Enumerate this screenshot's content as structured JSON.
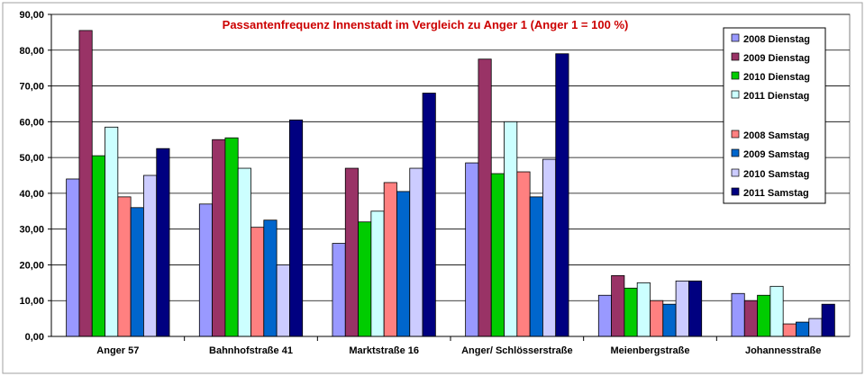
{
  "chart_data": {
    "type": "bar",
    "title": "Passantenfrequenz Innenstadt im Vergleich zu Anger 1 (Anger 1 = 100 %)",
    "title_color": "#cc0000",
    "xlabel": "",
    "ylabel": "",
    "ylim": [
      0,
      90
    ],
    "ytick_step": 10,
    "ytick_labels": [
      "0,00",
      "10,00",
      "20,00",
      "30,00",
      "40,00",
      "50,00",
      "60,00",
      "70,00",
      "80,00",
      "90,00"
    ],
    "grid": true,
    "legend_position": "top-right",
    "categories": [
      "Anger 57",
      "Bahnhofstraße 41",
      "Marktstraße 16",
      "Anger/ Schlösserstraße",
      "Meienbergstraße",
      "Johannesstraße"
    ],
    "series": [
      {
        "name": "2008 Dienstag",
        "color": "#9999ff",
        "values": [
          44,
          37,
          26,
          48.5,
          11.5,
          12
        ]
      },
      {
        "name": "2009 Dienstag",
        "color": "#993366",
        "values": [
          85.5,
          55,
          47,
          77.5,
          17,
          10
        ]
      },
      {
        "name": "2010 Dienstag",
        "color": "#00cc00",
        "values": [
          50.5,
          55.5,
          32,
          45.5,
          13.5,
          11.5
        ]
      },
      {
        "name": "2011 Dienstag",
        "color": "#ccffff",
        "values": [
          58.5,
          47,
          35,
          60,
          15,
          14
        ]
      },
      {
        "name": "2008 Samstag",
        "color": "#ff8080",
        "values": [
          39,
          30.5,
          43,
          46,
          10,
          3.5
        ]
      },
      {
        "name": "2009 Samstag",
        "color": "#0066cc",
        "values": [
          36,
          32.5,
          40.5,
          39,
          9,
          4
        ]
      },
      {
        "name": "2010 Samstag",
        "color": "#ccccff",
        "values": [
          45,
          20,
          47,
          49.5,
          15.5,
          5
        ]
      },
      {
        "name": "2011 Samstag",
        "color": "#000080",
        "values": [
          52.5,
          60.5,
          68,
          79,
          15.5,
          9
        ]
      }
    ]
  }
}
